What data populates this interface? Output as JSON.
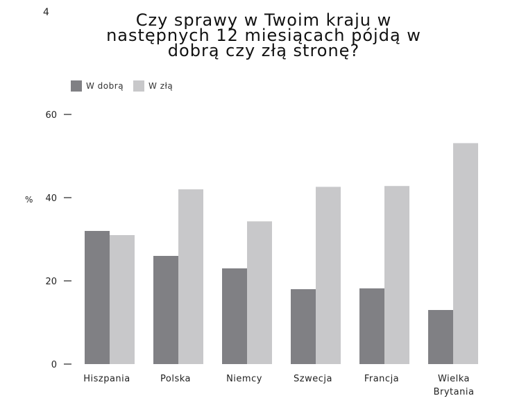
{
  "page": {
    "number": "4"
  },
  "chart_data": {
    "type": "bar",
    "title": "Czy sprawy w Twoim kraju w następnych 12 miesiącach pójdą w dobrą czy złą stronę?",
    "title_lines": [
      "Czy sprawy w Twoim kraju w",
      "następnych 12 miesiącach pójdą w",
      "dobrą czy złą stronę?"
    ],
    "ylabel": "%",
    "xlabel": "",
    "ylim": [
      0,
      60
    ],
    "yticks": [
      0,
      20,
      40,
      60
    ],
    "categories": [
      "Hiszpania",
      "Polska",
      "Niemcy",
      "Szwecja",
      "Francja",
      "Wielka Brytania"
    ],
    "category_lines": [
      [
        "Hiszpania"
      ],
      [
        "Polska"
      ],
      [
        "Niemcy"
      ],
      [
        "Szwecja"
      ],
      [
        "Francja"
      ],
      [
        "Wielka",
        "Brytania"
      ]
    ],
    "series": [
      {
        "name": "W dobrą",
        "color": "#808084",
        "values": [
          32,
          26,
          23,
          18,
          18.2,
          13
        ]
      },
      {
        "name": "W złą",
        "color": "#c8c8ca",
        "values": [
          31,
          42,
          34.3,
          42.6,
          42.8,
          53.1
        ]
      }
    ],
    "grid": false,
    "legend_position": "top-left"
  }
}
